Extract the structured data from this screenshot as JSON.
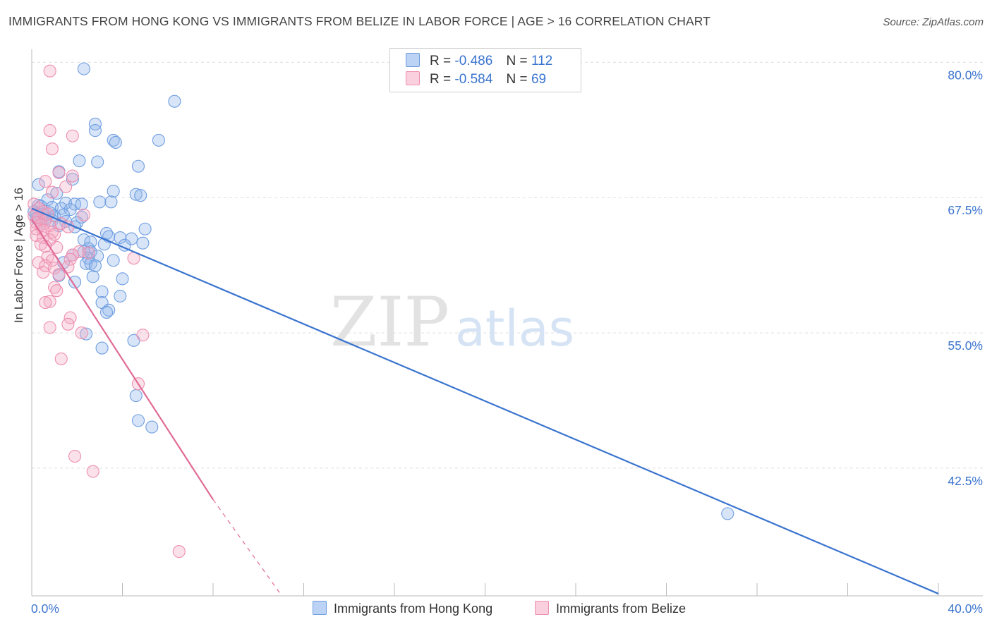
{
  "header": {
    "title": "IMMIGRANTS FROM HONG KONG VS IMMIGRANTS FROM BELIZE IN LABOR FORCE | AGE > 16 CORRELATION CHART",
    "source": "Source: ZipAtlas.com"
  },
  "watermark": {
    "zip": "ZIP",
    "atlas": "atlas"
  },
  "legend": {
    "rows": [
      {
        "r_label": "R =",
        "r_value": "-0.486",
        "n_label": "N =",
        "n_value": "112",
        "color": "#8fb4ec"
      },
      {
        "r_label": "R =",
        "r_value": "-0.584",
        "n_label": "N =",
        "n_value": "69",
        "color": "#f4a8c2"
      }
    ]
  },
  "bottom_legend": {
    "hong_kong": "Immigrants from Hong Kong",
    "belize": "Immigrants from Belize"
  },
  "chart_data": {
    "type": "scatter",
    "title": "IMMIGRANTS FROM HONG KONG VS IMMIGRANTS FROM BELIZE IN LABOR FORCE | AGE > 16 CORRELATION CHART",
    "xlabel": "",
    "ylabel": "In Labor Force | Age > 16",
    "xlim": [
      0,
      40
    ],
    "ylim": [
      30.7,
      81.2
    ],
    "x_tick_labels": [
      "0.0%",
      "40.0%"
    ],
    "y_ticks": [
      42.5,
      55.0,
      67.5,
      80.0
    ],
    "y_tick_labels": [
      "42.5%",
      "55.0%",
      "67.5%",
      "80.0%"
    ],
    "grid": true,
    "colors": {
      "hong_kong": "#3a74cf",
      "belize": "#e06a95"
    },
    "series": [
      {
        "name": "Immigrants from Hong Kong",
        "r": -0.486,
        "n": 112,
        "trend": {
          "x0": 0.0,
          "y0": 66.5,
          "x1": 40.0,
          "y1": 30.9,
          "style": "solid"
        },
        "points": [
          [
            2.3,
            79.4
          ],
          [
            6.3,
            76.4
          ],
          [
            2.8,
            74.3
          ],
          [
            2.8,
            73.7
          ],
          [
            3.6,
            72.8
          ],
          [
            5.6,
            72.8
          ],
          [
            3.7,
            72.6
          ],
          [
            2.1,
            70.9
          ],
          [
            2.9,
            70.8
          ],
          [
            4.7,
            70.4
          ],
          [
            1.2,
            69.9
          ],
          [
            1.8,
            69.2
          ],
          [
            0.3,
            68.7
          ],
          [
            3.6,
            68.1
          ],
          [
            1.1,
            67.9
          ],
          [
            4.6,
            67.8
          ],
          [
            4.8,
            67.7
          ],
          [
            0.7,
            67.3
          ],
          [
            3.0,
            67.1
          ],
          [
            3.5,
            67.1
          ],
          [
            1.5,
            67.0
          ],
          [
            1.9,
            66.9
          ],
          [
            2.2,
            66.9
          ],
          [
            0.3,
            66.8
          ],
          [
            0.4,
            66.7
          ],
          [
            0.9,
            66.6
          ],
          [
            1.3,
            66.5
          ],
          [
            1.7,
            66.4
          ],
          [
            0.1,
            66.2
          ],
          [
            0.2,
            66.0
          ],
          [
            0.5,
            66.0
          ],
          [
            0.8,
            66.1
          ],
          [
            1.0,
            65.8
          ],
          [
            1.4,
            65.9
          ],
          [
            0.2,
            65.6
          ],
          [
            0.6,
            65.6
          ],
          [
            0.9,
            65.4
          ],
          [
            2.2,
            65.7
          ],
          [
            1.5,
            65.3
          ],
          [
            2.0,
            65.2
          ],
          [
            0.4,
            65.0
          ],
          [
            1.2,
            64.9
          ],
          [
            1.9,
            64.8
          ],
          [
            5.0,
            64.6
          ],
          [
            3.3,
            64.2
          ],
          [
            3.4,
            63.9
          ],
          [
            3.9,
            63.8
          ],
          [
            4.4,
            63.7
          ],
          [
            2.3,
            63.6
          ],
          [
            2.6,
            63.4
          ],
          [
            3.2,
            63.2
          ],
          [
            4.1,
            63.1
          ],
          [
            4.9,
            63.3
          ],
          [
            2.5,
            62.8
          ],
          [
            2.3,
            62.5
          ],
          [
            2.6,
            62.5
          ],
          [
            1.8,
            62.2
          ],
          [
            2.9,
            62.1
          ],
          [
            2.5,
            61.9
          ],
          [
            3.6,
            61.7
          ],
          [
            1.4,
            61.5
          ],
          [
            2.4,
            61.4
          ],
          [
            2.6,
            61.4
          ],
          [
            2.8,
            61.2
          ],
          [
            1.2,
            60.3
          ],
          [
            2.7,
            60.2
          ],
          [
            4.0,
            60.0
          ],
          [
            1.9,
            59.7
          ],
          [
            3.1,
            58.8
          ],
          [
            3.9,
            58.4
          ],
          [
            3.1,
            57.8
          ],
          [
            3.4,
            57.1
          ],
          [
            3.3,
            56.9
          ],
          [
            2.4,
            54.9
          ],
          [
            4.5,
            54.3
          ],
          [
            3.1,
            53.6
          ],
          [
            4.6,
            49.2
          ],
          [
            4.7,
            46.9
          ],
          [
            5.3,
            46.3
          ],
          [
            30.7,
            38.3
          ]
        ]
      },
      {
        "name": "Immigrants from Belize",
        "r": -0.584,
        "n": 69,
        "trend": {
          "x0": 0.0,
          "y0": 65.5,
          "x1": 8.0,
          "y1": 39.6,
          "style": "solid",
          "dash_to": {
            "x": 11.0,
            "y": 30.8
          }
        },
        "points": [
          [
            0.8,
            79.2
          ],
          [
            0.8,
            73.7
          ],
          [
            1.8,
            73.2
          ],
          [
            0.9,
            72.0
          ],
          [
            1.2,
            69.8
          ],
          [
            0.6,
            69.0
          ],
          [
            1.8,
            69.5
          ],
          [
            1.5,
            68.5
          ],
          [
            0.9,
            68.0
          ],
          [
            0.1,
            66.9
          ],
          [
            0.3,
            66.5
          ],
          [
            0.5,
            66.2
          ],
          [
            0.7,
            66.0
          ],
          [
            0.1,
            65.8
          ],
          [
            0.3,
            65.6
          ],
          [
            0.6,
            65.4
          ],
          [
            0.2,
            65.2
          ],
          [
            0.4,
            65.0
          ],
          [
            0.8,
            64.9
          ],
          [
            1.3,
            65.1
          ],
          [
            1.6,
            64.8
          ],
          [
            2.3,
            65.9
          ],
          [
            0.2,
            64.6
          ],
          [
            0.5,
            64.5
          ],
          [
            0.9,
            64.3
          ],
          [
            0.2,
            64.0
          ],
          [
            0.5,
            63.8
          ],
          [
            0.8,
            63.6
          ],
          [
            1.0,
            64.1
          ],
          [
            0.4,
            63.2
          ],
          [
            0.6,
            63.0
          ],
          [
            1.1,
            62.9
          ],
          [
            2.1,
            62.5
          ],
          [
            2.5,
            62.4
          ],
          [
            1.8,
            62.2
          ],
          [
            0.7,
            62.0
          ],
          [
            0.9,
            61.7
          ],
          [
            1.7,
            61.8
          ],
          [
            4.5,
            61.9
          ],
          [
            0.3,
            61.5
          ],
          [
            0.6,
            61.2
          ],
          [
            1.0,
            61.0
          ],
          [
            1.6,
            61.1
          ],
          [
            0.5,
            60.6
          ],
          [
            1.2,
            60.4
          ],
          [
            1.0,
            59.2
          ],
          [
            1.1,
            58.9
          ],
          [
            0.8,
            57.9
          ],
          [
            0.6,
            57.8
          ],
          [
            1.7,
            56.4
          ],
          [
            1.6,
            55.8
          ],
          [
            0.8,
            55.5
          ],
          [
            2.2,
            55.0
          ],
          [
            4.9,
            54.8
          ],
          [
            1.3,
            52.6
          ],
          [
            4.7,
            50.3
          ],
          [
            1.9,
            43.6
          ],
          [
            2.7,
            42.2
          ],
          [
            6.5,
            34.8
          ]
        ]
      }
    ]
  }
}
